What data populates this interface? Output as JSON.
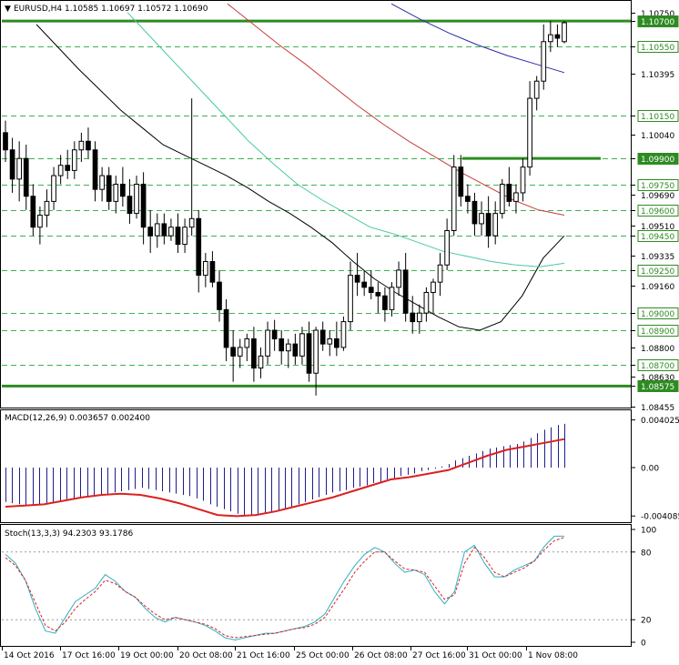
{
  "window": {
    "symbol_title": "EURUSD,H4",
    "ohlc": "1.10585 1.10697 1.10572 1.10690"
  },
  "colors": {
    "candle": "#000000",
    "grid": "#3cb44b",
    "level_line": "#2e8b22",
    "ma_fast": "#000000",
    "ma_mid": "#48c8a0",
    "ma_slow": "#c83c3c",
    "ma_long": "#2b2ba8",
    "macd_hist": "#1e1e8c",
    "macd_signal": "#dd2020",
    "stoch_main": "#30b0c0",
    "stoch_signal": "#dd2020",
    "label_box_green": "#2e8b22",
    "label_box_white": "#ffffff"
  },
  "chart_data": [
    {
      "type": "candlestick",
      "title": "EURUSD,H4",
      "ylim": [
        1.0845,
        1.1078
      ],
      "price_axis_ticks": [
        "1.10750",
        "1.10700",
        "1.10550",
        "1.10395",
        "1.10150",
        "1.10040",
        "1.09900",
        "1.09750",
        "1.09690",
        "1.09600",
        "1.09510",
        "1.09450",
        "1.09335",
        "1.09250",
        "1.09160",
        "1.09000",
        "1.08900",
        "1.08800",
        "1.08700",
        "1.08630",
        "1.08575",
        "1.08455"
      ],
      "highlighted_levels": [
        "1.10700",
        "1.10550",
        "1.10150",
        "1.09900",
        "1.09750",
        "1.09600",
        "1.09450",
        "1.09250",
        "1.09000",
        "1.08900",
        "1.08700",
        "1.08575"
      ],
      "x_tick_labels": [
        "14 Oct 2016",
        "17 Oct 16:00",
        "19 Oct 00:00",
        "20 Oct 08:00",
        "21 Oct 16:00",
        "25 Oct 00:00",
        "26 Oct 08:00",
        "27 Oct 16:00",
        "31 Oct 00:00",
        "1 Nov 08:00"
      ],
      "candles": [
        [
          1.1005,
          1.1012,
          1.0988,
          1.0995
        ],
        [
          1.0995,
          1.1002,
          1.097,
          1.0978
        ],
        [
          1.0978,
          1.1,
          1.0965,
          1.099
        ],
        [
          1.099,
          1.0998,
          1.096,
          1.0968
        ],
        [
          1.0968,
          1.0975,
          1.0945,
          1.095
        ],
        [
          1.095,
          1.0962,
          1.094,
          1.0957
        ],
        [
          1.0957,
          1.0972,
          1.095,
          1.0965
        ],
        [
          1.0965,
          1.0985,
          1.096,
          1.098
        ],
        [
          1.098,
          1.0992,
          1.0975,
          1.0986
        ],
        [
          1.0986,
          1.0995,
          1.0978,
          1.0983
        ],
        [
          1.0983,
          1.1,
          1.0978,
          1.0995
        ],
        [
          1.0995,
          1.1005,
          1.0988,
          1.1
        ],
        [
          1.1,
          1.1008,
          1.099,
          1.0995
        ],
        [
          1.0995,
          1.1,
          1.0965,
          1.0972
        ],
        [
          1.0972,
          1.0985,
          1.0965,
          1.098
        ],
        [
          1.098,
          1.0985,
          1.096,
          1.0965
        ],
        [
          1.0965,
          1.098,
          1.0958,
          1.0975
        ],
        [
          1.0975,
          1.0985,
          1.0962,
          1.0968
        ],
        [
          1.0968,
          1.0978,
          1.0952,
          1.0958
        ],
        [
          1.0958,
          1.098,
          1.0955,
          1.0975
        ],
        [
          1.0975,
          1.0982,
          1.094,
          1.095
        ],
        [
          1.095,
          1.096,
          1.0935,
          1.0945
        ],
        [
          1.0945,
          1.0958,
          1.0938,
          1.0952
        ],
        [
          1.0952,
          1.0958,
          1.094,
          1.0945
        ],
        [
          1.0945,
          1.0955,
          1.0942,
          1.095
        ],
        [
          1.095,
          1.0958,
          1.0935,
          1.094
        ],
        [
          1.094,
          1.0955,
          1.0935,
          1.095
        ],
        [
          1.095,
          1.1025,
          1.0945,
          1.0955
        ],
        [
          1.0955,
          1.096,
          1.0912,
          1.0922
        ],
        [
          1.0922,
          1.0935,
          1.0915,
          1.093
        ],
        [
          1.093,
          1.0936,
          1.0915,
          1.0918
        ],
        [
          1.0918,
          1.0925,
          1.0895,
          1.0902
        ],
        [
          1.0902,
          1.0908,
          1.0872,
          1.088
        ],
        [
          1.088,
          1.089,
          1.086,
          1.0875
        ],
        [
          1.0875,
          1.0885,
          1.0868,
          1.088
        ],
        [
          1.088,
          1.0888,
          1.0872,
          1.0885
        ],
        [
          1.0885,
          1.0892,
          1.086,
          1.0868
        ],
        [
          1.0868,
          1.088,
          1.0862,
          1.0875
        ],
        [
          1.0875,
          1.0895,
          1.087,
          1.089
        ],
        [
          1.089,
          1.0896,
          1.0878,
          1.0885
        ],
        [
          1.0885,
          1.089,
          1.087,
          1.0878
        ],
        [
          1.0878,
          1.0885,
          1.0868,
          1.0882
        ],
        [
          1.0882,
          1.0888,
          1.087,
          1.0875
        ],
        [
          1.0875,
          1.0892,
          1.087,
          1.0888
        ],
        [
          1.0888,
          1.0895,
          1.086,
          1.0865
        ],
        [
          1.0865,
          1.0892,
          1.0852,
          1.089
        ],
        [
          1.089,
          1.0895,
          1.0878,
          1.0882
        ],
        [
          1.0882,
          1.089,
          1.0875,
          1.0885
        ],
        [
          1.0885,
          1.0895,
          1.0875,
          1.088
        ],
        [
          1.088,
          1.0898,
          1.0878,
          1.0895
        ],
        [
          1.0895,
          1.093,
          1.089,
          1.0922
        ],
        [
          1.0922,
          1.0935,
          1.091,
          1.0918
        ],
        [
          1.0918,
          1.0925,
          1.091,
          1.0915
        ],
        [
          1.0915,
          1.0925,
          1.0908,
          1.0912
        ],
        [
          1.0912,
          1.0918,
          1.09,
          1.091
        ],
        [
          1.091,
          1.0915,
          1.0895,
          1.0902
        ],
        [
          1.0902,
          1.0918,
          1.0898,
          1.0915
        ],
        [
          1.0915,
          1.093,
          1.091,
          1.0925
        ],
        [
          1.0925,
          1.0935,
          1.0895,
          1.09
        ],
        [
          1.09,
          1.091,
          1.0888,
          1.0895
        ],
        [
          1.0895,
          1.0905,
          1.0888,
          1.09
        ],
        [
          1.09,
          1.0915,
          1.0895,
          1.0912
        ],
        [
          1.0912,
          1.092,
          1.09,
          1.0918
        ],
        [
          1.0918,
          1.0935,
          1.091,
          1.0928
        ],
        [
          1.0928,
          1.0955,
          1.0925,
          1.0948
        ],
        [
          1.0948,
          1.0992,
          1.0945,
          1.0985
        ],
        [
          1.0985,
          1.0992,
          1.0962,
          1.0968
        ],
        [
          1.0968,
          1.0975,
          1.0958,
          1.0965
        ],
        [
          1.0965,
          1.097,
          1.0945,
          1.0952
        ],
        [
          1.0952,
          1.0965,
          1.0945,
          1.0958
        ],
        [
          1.0958,
          1.0968,
          1.0938,
          1.0945
        ],
        [
          1.0945,
          1.0965,
          1.094,
          1.0958
        ],
        [
          1.0958,
          1.0978,
          1.0955,
          1.0975
        ],
        [
          1.0975,
          1.0985,
          1.0962,
          1.0965
        ],
        [
          1.0965,
          1.0975,
          1.0958,
          1.097
        ],
        [
          1.097,
          1.099,
          1.0965,
          1.0985
        ],
        [
          1.0985,
          1.1035,
          1.098,
          1.1025
        ],
        [
          1.1025,
          1.1038,
          1.1018,
          1.1035
        ],
        [
          1.1035,
          1.1068,
          1.103,
          1.1058
        ],
        [
          1.1058,
          1.107,
          1.1052,
          1.1062
        ],
        [
          1.1062,
          1.1068,
          1.1055,
          1.106
        ],
        [
          1.1058,
          1.107,
          1.1057,
          1.1069
        ]
      ],
      "ma_fast": [
        1.1068,
        1.1055,
        1.1042,
        1.103,
        1.1018,
        1.1008,
        1.0998,
        1.0992,
        1.0986,
        1.098,
        1.0973,
        1.0965,
        1.0958,
        1.095,
        1.0941,
        1.093,
        1.092,
        1.0912,
        1.0905,
        1.0898,
        1.0892,
        1.089,
        1.0895,
        1.091,
        1.0932,
        1.0945
      ],
      "ma_mid": [
        1.1075,
        1.106,
        1.1045,
        1.103,
        1.1015,
        1.1,
        1.0987,
        1.0975,
        1.0966,
        1.0958,
        1.095,
        1.0946,
        1.0941,
        1.0936,
        1.0933,
        1.093,
        1.0928,
        1.0927,
        1.0929
      ],
      "ma_slow": [
        1.108,
        1.1068,
        1.1056,
        1.1045,
        1.1033,
        1.1021,
        1.101,
        1.1,
        1.0991,
        1.0982,
        1.0974,
        1.0966,
        1.096,
        1.0957
      ],
      "ma_long": [
        1.108,
        1.1071,
        1.1063,
        1.1056,
        1.105,
        1.1045,
        1.104
      ],
      "macd": {
        "label": "MACD(12,26,9) 0.003657 0.002400",
        "ylim": [
          -0.0043,
          0.0043
        ],
        "axis_ticks": [
          "0.004025",
          "0.00",
          "-0.004085"
        ],
        "histogram": [
          -0.0029,
          -0.003,
          -0.0031,
          -0.0032,
          -0.0032,
          -0.0031,
          -0.0031,
          -0.003,
          -0.0029,
          -0.0028,
          -0.0027,
          -0.0026,
          -0.0025,
          -0.0024,
          -0.0023,
          -0.0022,
          -0.0021,
          -0.002,
          -0.0019,
          -0.0018,
          -0.0017,
          -0.0018,
          -0.0019,
          -0.002,
          -0.0021,
          -0.0022,
          -0.0023,
          -0.0024,
          -0.0026,
          -0.0028,
          -0.0031,
          -0.0033,
          -0.0035,
          -0.0037,
          -0.0039,
          -0.004,
          -0.004,
          -0.004,
          -0.0039,
          -0.0038,
          -0.0037,
          -0.0035,
          -0.0033,
          -0.0031,
          -0.0029,
          -0.0027,
          -0.0025,
          -0.0023,
          -0.0021,
          -0.002,
          -0.0019,
          -0.0017,
          -0.0016,
          -0.0015,
          -0.0013,
          -0.0012,
          -0.001,
          -0.0009,
          -0.0007,
          -0.0006,
          -0.0005,
          -0.0003,
          -0.0002,
          -0.0001,
          0.0001,
          0.0003,
          0.0006,
          0.0008,
          0.001,
          0.0012,
          0.0014,
          0.0016,
          0.0017,
          0.0018,
          0.0019,
          0.002,
          0.0022,
          0.0025,
          0.0029,
          0.0032,
          0.0034,
          0.0036,
          0.0037
        ],
        "signal": [
          -0.0033,
          -0.0032,
          -0.0031,
          -0.0028,
          -0.0025,
          -0.0023,
          -0.0022,
          -0.0023,
          -0.0026,
          -0.003,
          -0.0035,
          -0.004,
          -0.0041,
          -0.004,
          -0.0037,
          -0.0033,
          -0.0029,
          -0.0025,
          -0.002,
          -0.0015,
          -0.001,
          -0.0008,
          -0.0005,
          -0.0002,
          0.0004,
          0.001,
          0.0015,
          0.0018,
          0.0021,
          0.0024
        ]
      },
      "stoch": {
        "label": "Stoch(13,3,3) 94.2303 93.1786",
        "ylim": [
          0,
          100
        ],
        "axis_ticks": [
          "100",
          "80",
          "20",
          "0"
        ],
        "main": [
          78,
          70,
          55,
          30,
          10,
          8,
          22,
          36,
          42,
          48,
          60,
          54,
          45,
          40,
          30,
          22,
          18,
          22,
          20,
          18,
          15,
          10,
          4,
          2,
          4,
          6,
          8,
          8,
          10,
          12,
          14,
          18,
          25,
          40,
          55,
          68,
          78,
          84,
          80,
          70,
          62,
          64,
          60,
          45,
          34,
          45,
          80,
          86,
          70,
          58,
          58,
          64,
          68,
          72,
          85,
          94,
          94
        ],
        "signal": [
          75,
          68,
          55,
          35,
          15,
          10,
          18,
          30,
          38,
          45,
          55,
          52,
          45,
          40,
          32,
          25,
          20,
          22,
          20,
          18,
          16,
          12,
          6,
          4,
          5,
          6,
          7,
          8,
          10,
          12,
          13,
          16,
          22,
          35,
          48,
          62,
          72,
          80,
          80,
          72,
          65,
          64,
          62,
          50,
          38,
          42,
          70,
          84,
          75,
          62,
          58,
          62,
          66,
          72,
          82,
          90,
          93
        ]
      }
    }
  ]
}
